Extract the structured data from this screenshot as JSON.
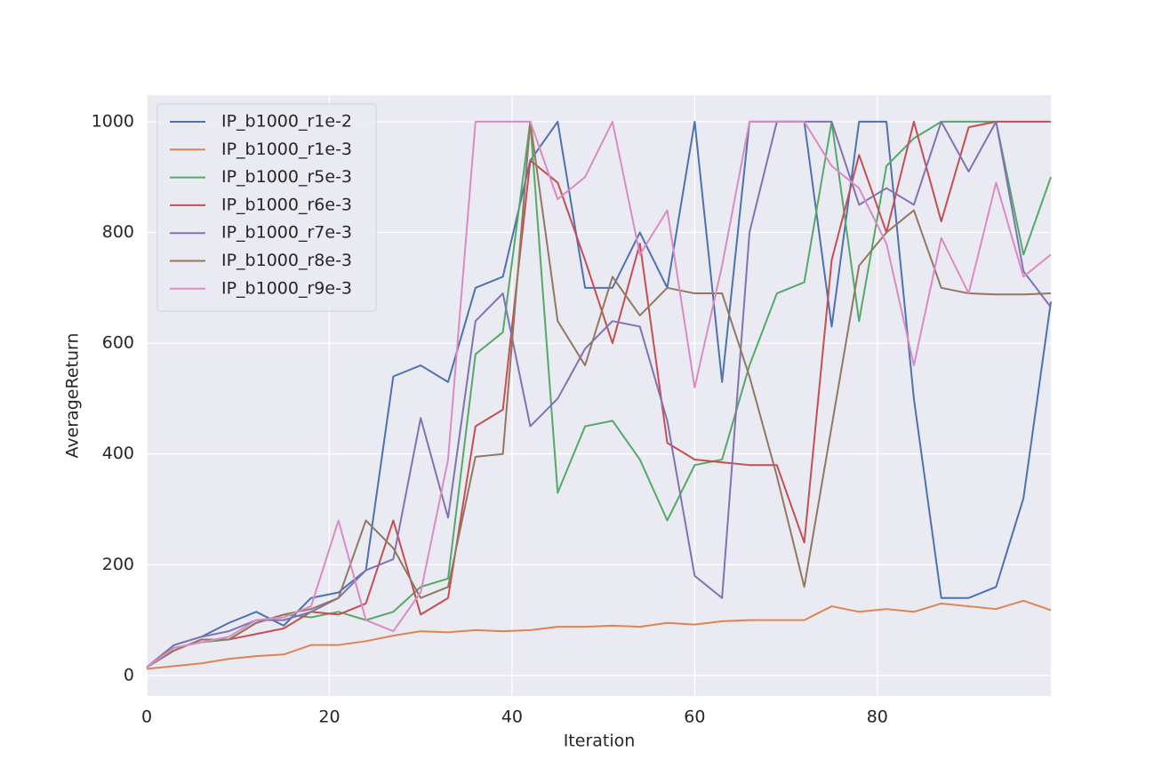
{
  "chart_data": {
    "type": "line",
    "x_label": "Iteration",
    "y_label": "AverageReturn",
    "x": [
      0,
      3,
      6,
      9,
      12,
      15,
      18,
      21,
      24,
      27,
      30,
      33,
      36,
      39,
      42,
      45,
      48,
      51,
      54,
      57,
      60,
      63,
      66,
      69,
      72,
      75,
      78,
      81,
      84,
      87,
      90,
      93,
      96,
      99
    ],
    "xlim": [
      0,
      99
    ],
    "xticks": [
      0,
      20,
      40,
      60,
      80
    ],
    "ylim": [
      -37,
      1048
    ],
    "yticks": [
      0,
      200,
      400,
      600,
      800,
      1000
    ],
    "grid": true,
    "legend": "upper left",
    "series": [
      {
        "name": "IP_b1000_r1e-2",
        "color": "#4c72b0",
        "values": [
          15,
          55,
          70,
          95,
          115,
          90,
          140,
          150,
          190,
          540,
          560,
          530,
          700,
          720,
          930,
          1000,
          700,
          700,
          800,
          700,
          1000,
          530,
          1000,
          1000,
          1000,
          630,
          1000,
          1000,
          500,
          140,
          140,
          160,
          320,
          675
        ]
      },
      {
        "name": "IP_b1000_r1e-3",
        "color": "#dd8452",
        "values": [
          12,
          17,
          22,
          30,
          35,
          38,
          55,
          55,
          62,
          72,
          80,
          78,
          82,
          80,
          82,
          88,
          88,
          90,
          88,
          95,
          92,
          98,
          100,
          100,
          100,
          125,
          115,
          120,
          115,
          130,
          125,
          120,
          135,
          118
        ]
      },
      {
        "name": "IP_b1000_r5e-3",
        "color": "#55a868",
        "values": [
          15,
          50,
          60,
          65,
          95,
          110,
          105,
          115,
          100,
          115,
          160,
          175,
          580,
          620,
          1000,
          330,
          450,
          460,
          390,
          280,
          380,
          390,
          560,
          690,
          710,
          1000,
          640,
          920,
          970,
          1000,
          1000,
          1000,
          760,
          900
        ]
      },
      {
        "name": "IP_b1000_r6e-3",
        "color": "#c44e52",
        "values": [
          15,
          45,
          65,
          65,
          75,
          85,
          115,
          110,
          130,
          280,
          110,
          140,
          450,
          480,
          930,
          890,
          750,
          600,
          780,
          420,
          390,
          385,
          380,
          380,
          240,
          750,
          940,
          800,
          1000,
          820,
          990,
          1000,
          1000,
          1000
        ]
      },
      {
        "name": "IP_b1000_r7e-3",
        "color": "#8172b3",
        "values": [
          15,
          55,
          70,
          80,
          100,
          100,
          115,
          140,
          190,
          210,
          465,
          285,
          640,
          690,
          450,
          500,
          590,
          640,
          630,
          460,
          180,
          140,
          800,
          1000,
          1000,
          1000,
          850,
          880,
          850,
          1000,
          910,
          1000,
          730,
          665
        ]
      },
      {
        "name": "IP_b1000_r8e-3",
        "color": "#937860",
        "values": [
          15,
          45,
          65,
          65,
          95,
          110,
          120,
          140,
          280,
          230,
          140,
          160,
          395,
          400,
          1000,
          640,
          560,
          720,
          650,
          700,
          690,
          690,
          540,
          360,
          160,
          450,
          740,
          800,
          840,
          700,
          690,
          688,
          688,
          690
        ]
      },
      {
        "name": "IP_b1000_r9e-3",
        "color": "#da8bc3",
        "values": [
          15,
          50,
          60,
          70,
          100,
          105,
          125,
          280,
          100,
          80,
          150,
          390,
          1000,
          1000,
          1000,
          860,
          900,
          1000,
          760,
          840,
          520,
          740,
          1000,
          1000,
          1000,
          920,
          880,
          780,
          560,
          790,
          690,
          890,
          720,
          760
        ]
      }
    ]
  }
}
